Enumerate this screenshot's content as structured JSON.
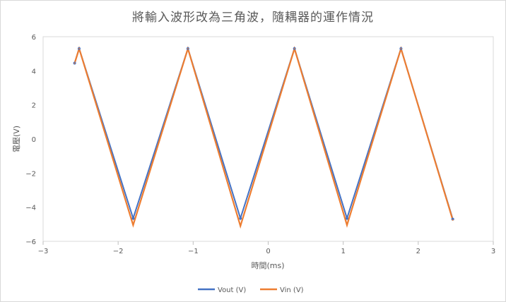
{
  "chart_data": {
    "type": "line",
    "title": "將輸入波形改為三角波，隨耦器的運作情況",
    "xlabel": "時間(ms)",
    "ylabel": "電壓(V)",
    "xlim": [
      -3,
      3
    ],
    "ylim": [
      -6,
      6
    ],
    "x_ticks": [
      -3,
      -2,
      -1,
      0,
      1,
      2,
      3
    ],
    "y_ticks": [
      -6,
      -4,
      -2,
      0,
      2,
      4,
      6
    ],
    "x_tick_labels": [
      "−3",
      "−2",
      "−1",
      "0",
      "1",
      "2",
      "3"
    ],
    "y_tick_labels": [
      "−6",
      "−4",
      "−2",
      "0",
      "2",
      "4",
      "6"
    ],
    "grid": false,
    "legend_position": "bottom",
    "series": [
      {
        "name": "Vout (V)",
        "color": "#4472c4",
        "x": [
          -2.58,
          -2.52,
          -1.8,
          -1.07,
          -0.37,
          0.35,
          1.05,
          1.77,
          2.46
        ],
        "y": [
          4.45,
          5.3,
          -4.65,
          5.3,
          -4.65,
          5.3,
          -4.65,
          5.3,
          -4.7
        ]
      },
      {
        "name": "Vin (V)",
        "color": "#ed7d31",
        "x": [
          -2.58,
          -2.52,
          -1.8,
          -1.07,
          -0.37,
          0.35,
          1.05,
          1.77,
          2.46
        ],
        "y": [
          4.45,
          5.3,
          -5.05,
          5.3,
          -5.1,
          5.3,
          -5.05,
          5.3,
          -4.75
        ]
      }
    ]
  }
}
